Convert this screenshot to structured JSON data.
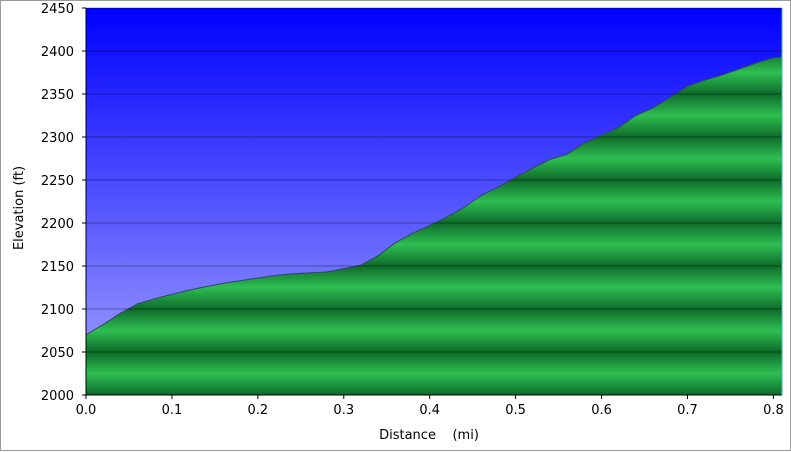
{
  "chart_data": {
    "type": "area",
    "title": "",
    "xlabel": "Distance    (mi)",
    "ylabel": "Elevation (ft)",
    "xlim": [
      0,
      0.81
    ],
    "ylim": [
      2000,
      2450
    ],
    "x_ticks": [
      "0.0",
      "0.1",
      "0.2",
      "0.3",
      "0.4",
      "0.5",
      "0.6",
      "0.7",
      "0.8"
    ],
    "y_ticks": [
      "2000",
      "2050",
      "2100",
      "2150",
      "2200",
      "2250",
      "2300",
      "2350",
      "2400",
      "2450"
    ],
    "grid": true,
    "colors": {
      "sky_top": "#0000ff",
      "sky_bottom": "#a6a6ff",
      "fill_light": "#2fbf52",
      "fill_dark": "#0e6a2a",
      "outline": "#3a3f7a"
    },
    "series": [
      {
        "x": [
          0.0,
          0.02,
          0.04,
          0.06,
          0.08,
          0.1,
          0.12,
          0.14,
          0.16,
          0.18,
          0.2,
          0.22,
          0.24,
          0.26,
          0.28,
          0.3,
          0.32,
          0.34,
          0.36,
          0.38,
          0.4,
          0.42,
          0.44,
          0.46,
          0.48,
          0.5,
          0.52,
          0.54,
          0.56,
          0.58,
          0.6,
          0.62,
          0.64,
          0.66,
          0.68,
          0.7,
          0.72,
          0.74,
          0.76,
          0.78,
          0.8,
          0.81
        ],
        "values": [
          2070,
          2082,
          2095,
          2106,
          2112,
          2117,
          2122,
          2126,
          2130,
          2133,
          2136,
          2139,
          2141,
          2142,
          2143,
          2147,
          2151,
          2162,
          2177,
          2188,
          2197,
          2207,
          2218,
          2232,
          2242,
          2253,
          2264,
          2274,
          2280,
          2293,
          2302,
          2311,
          2325,
          2334,
          2346,
          2359,
          2366,
          2372,
          2379,
          2386,
          2392,
          2393
        ]
      }
    ]
  }
}
